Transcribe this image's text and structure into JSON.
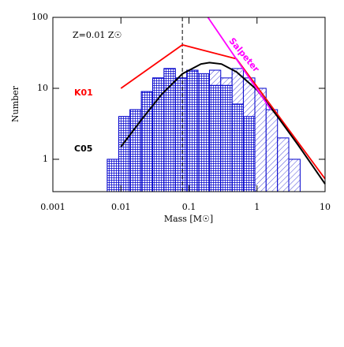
{
  "chart_data": {
    "type": "histogram",
    "xlabel": "Mass [M☉]",
    "ylabel": "Number",
    "annotation": "Z=0.01 Z☉",
    "xscale": "log",
    "yscale": "log",
    "xlim": [
      0.001,
      10
    ],
    "ylim": [
      0.35,
      100
    ],
    "xticks": [
      0.001,
      0.01,
      0.1,
      1,
      10
    ],
    "yticks": [
      1,
      10,
      100
    ],
    "bins": [
      0.0063,
      0.0093,
      0.0136,
      0.02,
      0.0293,
      0.043,
      0.063,
      0.093,
      0.136,
      0.2,
      0.293,
      0.43,
      0.63,
      0.93,
      1.36,
      2.0,
      2.93,
      4.3
    ],
    "series": [
      {
        "color": "#0000cc",
        "pattern": "hatch",
        "values": [
          1,
          4,
          5,
          9,
          14,
          19,
          14,
          18,
          16,
          18,
          14,
          19,
          14,
          10,
          5,
          2,
          1
        ]
      },
      {
        "color": "#0000cc",
        "pattern": "dots",
        "values": [
          1,
          4,
          5,
          9,
          14,
          19,
          14,
          18,
          16,
          11,
          11,
          6,
          4,
          0,
          0,
          0,
          0
        ]
      }
    ],
    "lines": [
      {
        "name": "K01",
        "color": "#ff0000",
        "x": [
          0.01,
          0.08,
          0.5,
          10
        ],
        "values": [
          10,
          41,
          26,
          0.53
        ]
      },
      {
        "name": "C05",
        "color": "#000000",
        "x": [
          0.01,
          0.02,
          0.04,
          0.08,
          0.15,
          0.2,
          0.3,
          0.5,
          1,
          2,
          4,
          10
        ],
        "values": [
          1.5,
          3.6,
          8.3,
          16,
          22,
          23,
          22,
          17,
          9.5,
          4,
          1.6,
          0.45
        ]
      },
      {
        "name": "Salpeter",
        "color": "#ff00ff",
        "x": [
          0.19,
          1.6
        ],
        "values": [
          100,
          5
        ]
      }
    ],
    "vline": {
      "x": 0.08,
      "style": "dashed"
    }
  }
}
